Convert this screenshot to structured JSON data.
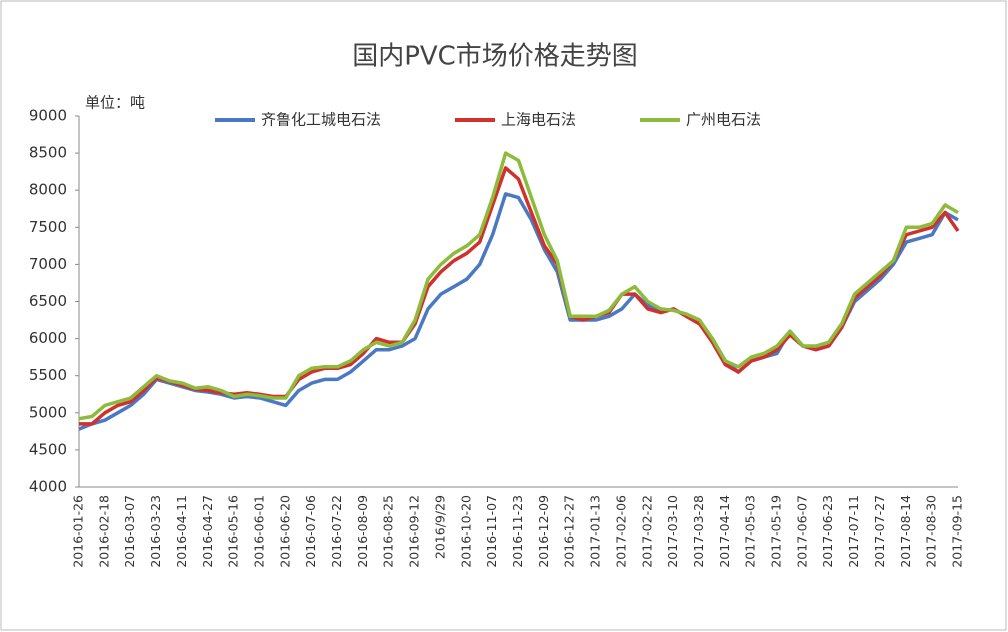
{
  "chart_data": {
    "type": "line",
    "title": "国内PVC市场价格走势图",
    "unit_label": "单位：吨",
    "categories": [
      "2016-01-26",
      null,
      "2016-02-18",
      null,
      "2016-03-07",
      null,
      "2016-03-23",
      null,
      "2016-04-11",
      null,
      "2016-04-27",
      null,
      "2016-05-16",
      null,
      "2016-06-01",
      null,
      "2016-06-20",
      null,
      "2016-07-06",
      null,
      "2016-07-22",
      null,
      "2016-08-09",
      null,
      "2016-08-25",
      null,
      "2016-09-12",
      null,
      "2016/9/29",
      null,
      "2016-10-20",
      null,
      "2016-11-07",
      null,
      "2016-11-23",
      null,
      "2016-12-09",
      null,
      "2016-12-27",
      null,
      "2017-01-13",
      null,
      "2017-02-06",
      null,
      "2017-02-22",
      null,
      "2017-03-10",
      null,
      "2017-03-28",
      null,
      "2017-04-14",
      null,
      "2017-05-03",
      null,
      "2017-05-19",
      null,
      "2017-06-07",
      null,
      "2017-06-23",
      null,
      "2017-07-11",
      null,
      "2017-07-27",
      null,
      "2017-08-14",
      null,
      "2017-08-30",
      null,
      "2017-09-15"
    ],
    "series": [
      {
        "name": "齐鲁化工城电石法",
        "color": "#4a78c2",
        "values": [
          4780,
          4850,
          4900,
          5000,
          5100,
          5250,
          5450,
          5400,
          5350,
          5300,
          5280,
          5250,
          5200,
          5220,
          5200,
          5150,
          5100,
          5300,
          5400,
          5450,
          5450,
          5550,
          5700,
          5850,
          5850,
          5900,
          6000,
          6400,
          6600,
          6700,
          6800,
          7000,
          7400,
          7950,
          7900,
          7600,
          7200,
          6900,
          6250,
          6250,
          6250,
          6300,
          6400,
          6600,
          6450,
          6350,
          6400,
          6300,
          6200,
          6000,
          5700,
          5550,
          5700,
          5750,
          5800,
          6100,
          5900,
          5850,
          5900,
          6150,
          6500,
          6650,
          6800,
          7000,
          7300,
          7350,
          7400,
          7700,
          7600
        ]
      },
      {
        "name": "上海电石法",
        "color": "#d0312d",
        "values": [
          4850,
          4850,
          5000,
          5100,
          5150,
          5300,
          5470,
          5420,
          5370,
          5320,
          5300,
          5270,
          5250,
          5270,
          5250,
          5220,
          5220,
          5450,
          5550,
          5600,
          5600,
          5650,
          5800,
          6000,
          5950,
          5950,
          6200,
          6700,
          6900,
          7050,
          7150,
          7300,
          7800,
          8300,
          8150,
          7700,
          7250,
          7000,
          6300,
          6250,
          6300,
          6350,
          6600,
          6600,
          6400,
          6350,
          6400,
          6300,
          6200,
          5950,
          5650,
          5550,
          5700,
          5750,
          5850,
          6050,
          5900,
          5850,
          5900,
          6150,
          6550,
          6700,
          6850,
          7050,
          7400,
          7450,
          7500,
          7700,
          7450
        ]
      },
      {
        "name": "广州电石法",
        "color": "#8dbb3c",
        "values": [
          4920,
          4950,
          5100,
          5150,
          5200,
          5350,
          5500,
          5430,
          5400,
          5330,
          5350,
          5300,
          5220,
          5250,
          5230,
          5200,
          5200,
          5500,
          5600,
          5620,
          5620,
          5700,
          5850,
          5950,
          5900,
          5950,
          6250,
          6800,
          7000,
          7150,
          7250,
          7400,
          7900,
          8500,
          8400,
          7900,
          7400,
          7050,
          6300,
          6300,
          6300,
          6380,
          6600,
          6700,
          6500,
          6400,
          6380,
          6330,
          6250,
          6000,
          5700,
          5620,
          5750,
          5800,
          5900,
          6100,
          5900,
          5900,
          5950,
          6200,
          6600,
          6750,
          6900,
          7050,
          7500,
          7500,
          7550,
          7800,
          7700
        ]
      }
    ],
    "ylim": [
      4000,
      9000
    ],
    "yticks": [
      4000,
      4500,
      5000,
      5500,
      6000,
      6500,
      7000,
      7500,
      8000,
      8500,
      9000
    ]
  }
}
